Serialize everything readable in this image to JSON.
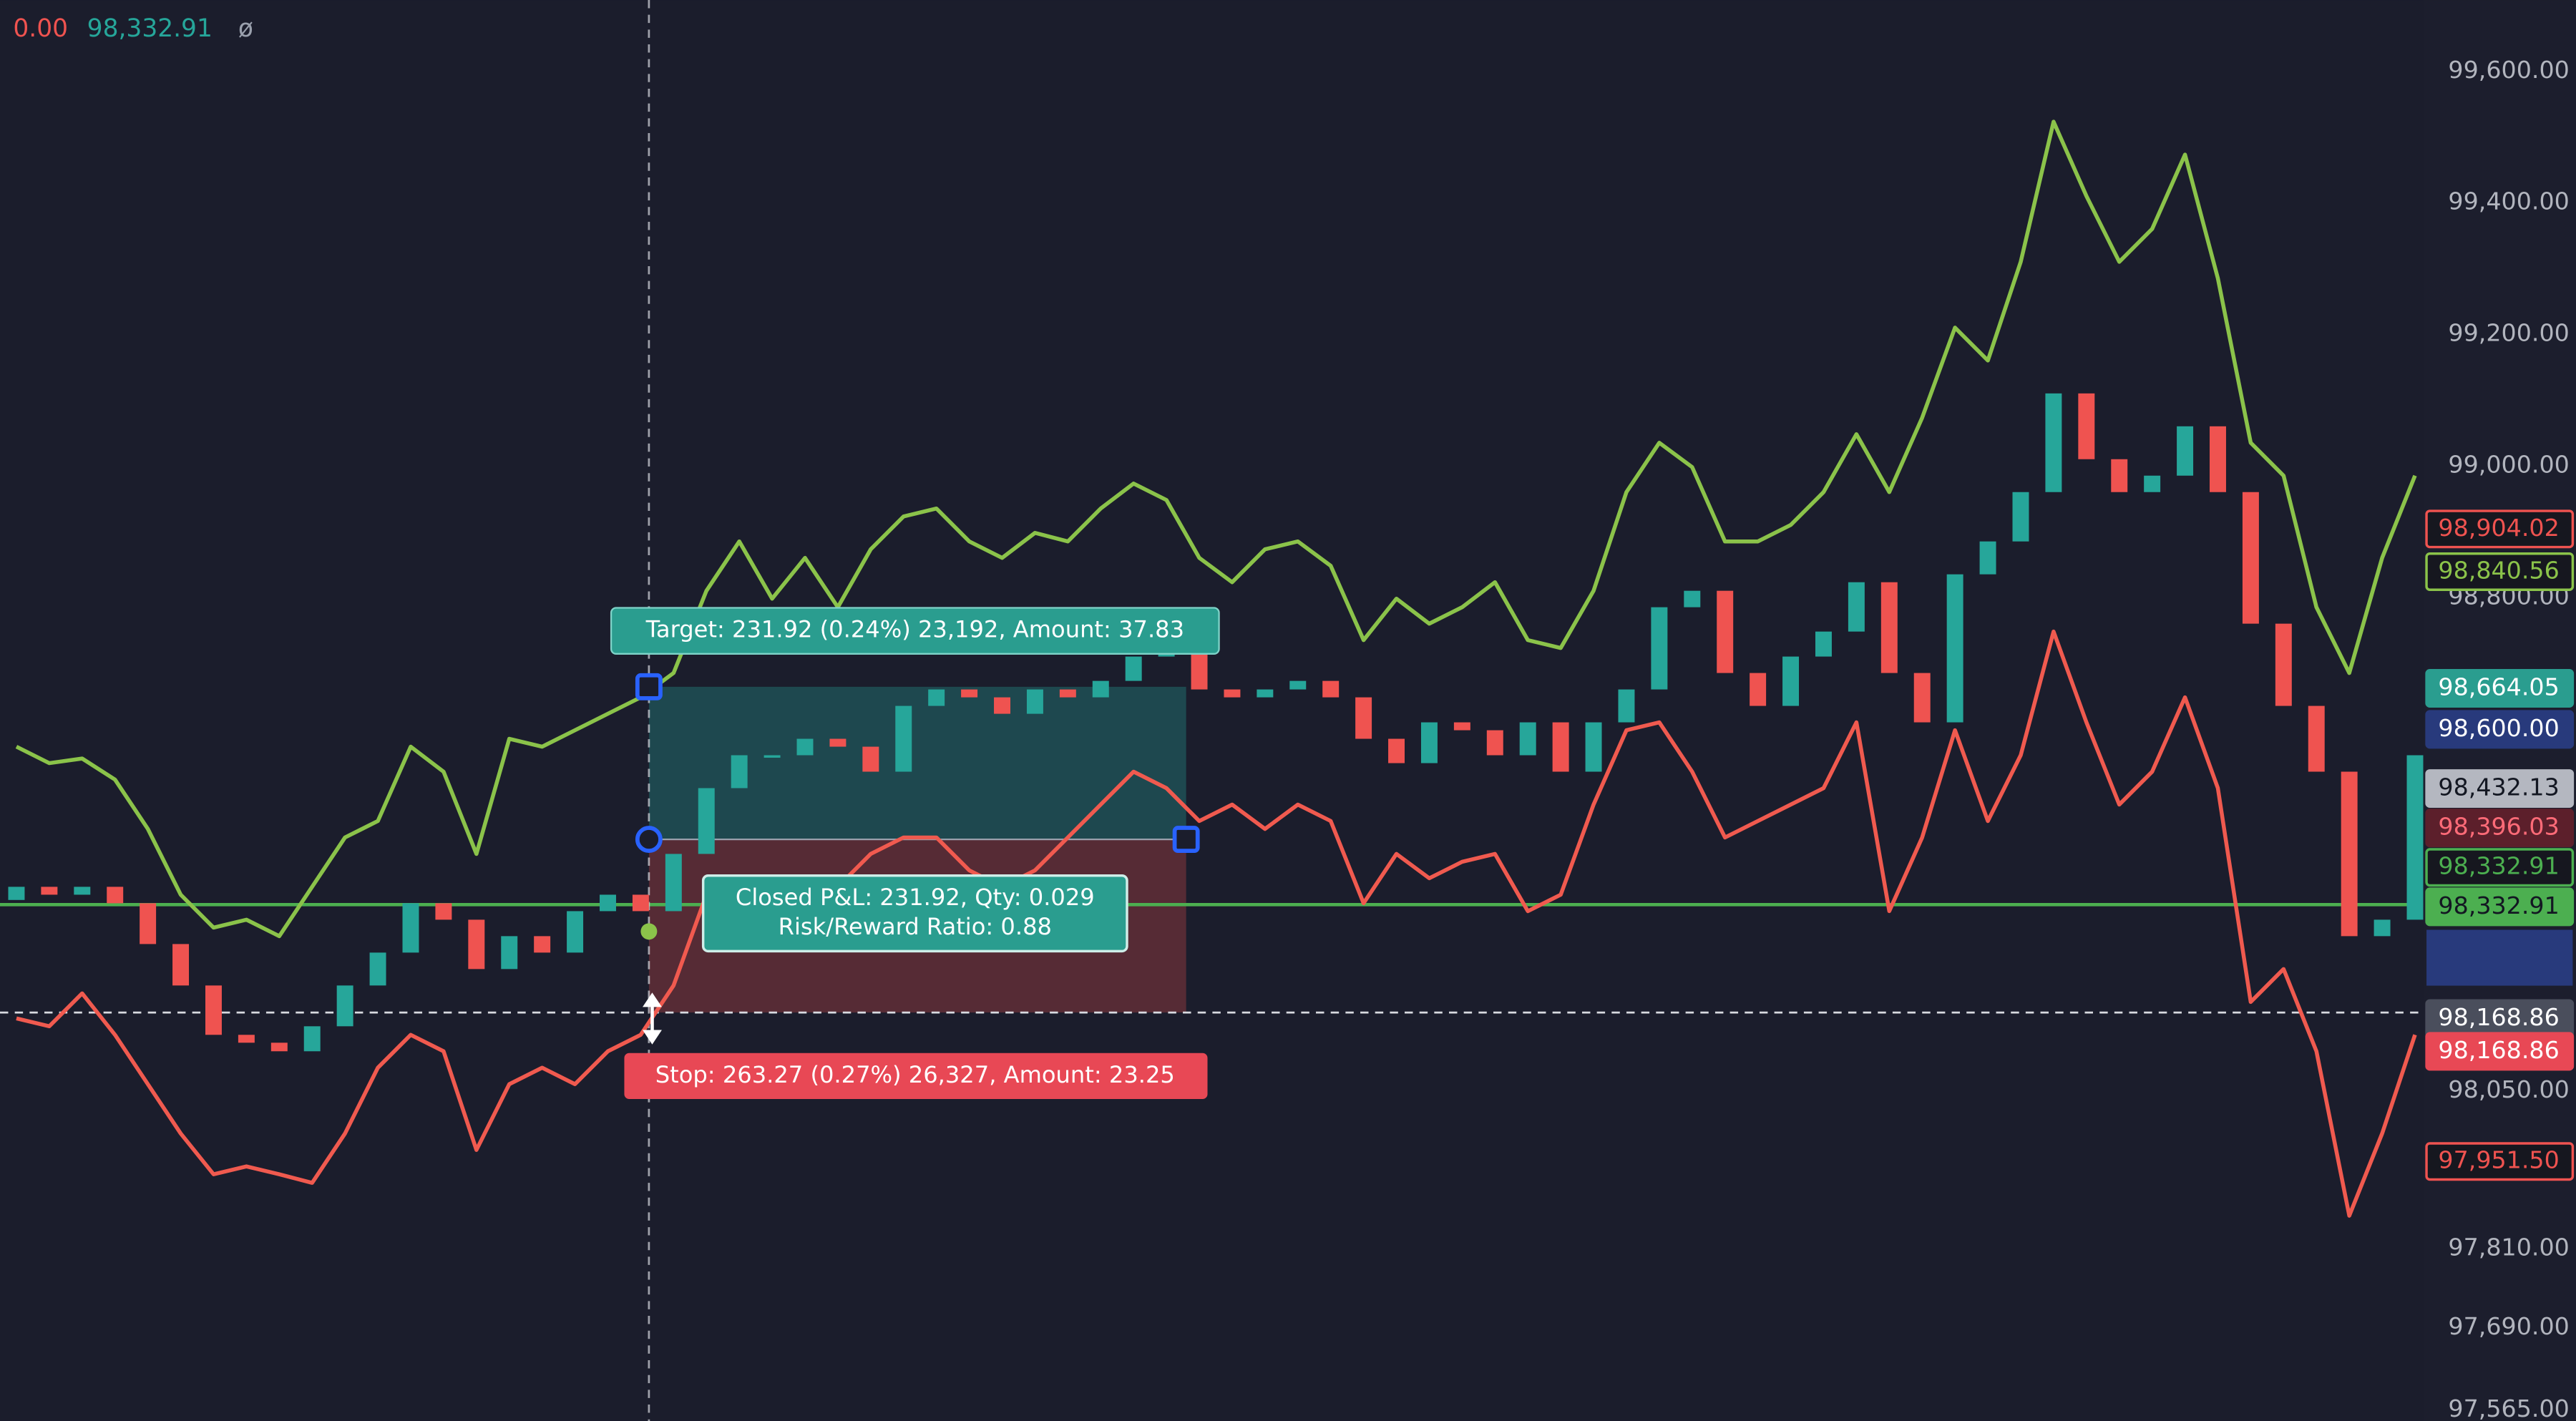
{
  "legend": {
    "change": "0.00",
    "price": "98,332.91",
    "symbol": "ø"
  },
  "chart_data": {
    "type": "candlestick",
    "up_color": "#26a69a",
    "down_color": "#ef5350",
    "open": [
      98340,
      98360,
      98348,
      98360,
      98335,
      98273,
      98210,
      98135,
      98123,
      98110,
      98148,
      98210,
      98260,
      98335,
      98310,
      98235,
      98285,
      98260,
      98323,
      98348,
      98323,
      98410,
      98510,
      98560,
      98560,
      98585,
      98573,
      98535,
      98635,
      98660,
      98648,
      98623,
      98660,
      98648,
      98673,
      98710,
      98735,
      98660,
      98648,
      98660,
      98673,
      98648,
      98585,
      98548,
      98610,
      98598,
      98560,
      98610,
      98535,
      98610,
      98660,
      98785,
      98810,
      98685,
      98635,
      98710,
      98748,
      98823,
      98685,
      98610,
      98835,
      98885,
      98960,
      99110,
      99010,
      98960,
      98985,
      99060,
      98960,
      98760,
      98635,
      98535,
      98285,
      98310
    ],
    "close": [
      98360,
      98348,
      98360,
      98335,
      98273,
      98210,
      98135,
      98123,
      98110,
      98148,
      98210,
      98260,
      98335,
      98310,
      98235,
      98285,
      98260,
      98323,
      98348,
      98323,
      98410,
      98510,
      98560,
      98560,
      98585,
      98573,
      98535,
      98635,
      98660,
      98648,
      98623,
      98660,
      98648,
      98673,
      98710,
      98735,
      98660,
      98648,
      98660,
      98673,
      98648,
      98585,
      98548,
      98610,
      98598,
      98560,
      98610,
      98535,
      98610,
      98660,
      98785,
      98810,
      98685,
      98635,
      98710,
      98748,
      98823,
      98685,
      98610,
      98835,
      98885,
      98960,
      99110,
      99010,
      98960,
      98985,
      99060,
      98960,
      98760,
      98635,
      98535,
      98285,
      98310,
      98560
    ],
    "series": [
      {
        "color": "#8bc34a",
        "values": [
          98573,
          98548,
          98555,
          98523,
          98448,
          98348,
          98298,
          98310,
          98285,
          98360,
          98435,
          98460,
          98573,
          98535,
          98410,
          98585,
          98573,
          98598,
          98623,
          98648,
          98685,
          98810,
          98885,
          98798,
          98860,
          98785,
          98873,
          98923,
          98935,
          98885,
          98860,
          98898,
          98885,
          98935,
          98973,
          98948,
          98860,
          98823,
          98873,
          98885,
          98848,
          98735,
          98798,
          98760,
          98785,
          98823,
          98735,
          98723,
          98810,
          98960,
          99035,
          98998,
          98885,
          98885,
          98910,
          98960,
          99048,
          98960,
          99073,
          99210,
          99160,
          99310,
          99523,
          99410,
          99310,
          99360,
          99473,
          99285,
          99035,
          98985,
          98785,
          98685,
          98860,
          98985
        ]
      },
      {
        "color": "#f05a4f",
        "values": [
          98160,
          98148,
          98198,
          98135,
          98060,
          97985,
          97923,
          97935,
          97923,
          97910,
          97985,
          98085,
          98135,
          98110,
          97960,
          98060,
          98085,
          98060,
          98110,
          98135,
          98210,
          98348,
          98360,
          98348,
          98335,
          98360,
          98410,
          98435,
          98435,
          98385,
          98360,
          98385,
          98435,
          98485,
          98535,
          98510,
          98460,
          98485,
          98448,
          98485,
          98460,
          98335,
          98410,
          98373,
          98398,
          98410,
          98323,
          98348,
          98485,
          98598,
          98610,
          98535,
          98435,
          98460,
          98485,
          98510,
          98610,
          98323,
          98435,
          98598,
          98460,
          98560,
          98748,
          98610,
          98485,
          98535,
          98648,
          98510,
          98185,
          98235,
          98110,
          97860,
          97985,
          98135
        ]
      }
    ],
    "ylim": [
      97548,
      99708
    ],
    "yticks": [
      {
        "value": 99600,
        "label": "99,600.00"
      },
      {
        "value": 99400,
        "label": "99,400.00"
      },
      {
        "value": 99200,
        "label": "99,200.00"
      },
      {
        "value": 99000,
        "label": "99,000.00"
      },
      {
        "value": 98800,
        "label": "98,800.00"
      },
      {
        "value": 98050,
        "label": "98,050.00"
      },
      {
        "value": 97810,
        "label": "97,810.00"
      },
      {
        "value": 97690,
        "label": "97,690.00"
      },
      {
        "value": 97565,
        "label": "97,565.00"
      }
    ],
    "current_price": 98332.91,
    "crosshair_price": 98168.86,
    "position": {
      "entry": 98432.13,
      "target": 98664.05,
      "stop": 98168.86,
      "target_label": "Target: 231.92 (0.24%) 23,192, Amount: 37.83",
      "pnl_label": "Closed P&L: 231.92, Qty: 0.029",
      "ratio_label": "Risk/Reward Ratio: 0.88",
      "stop_label": "Stop: 263.27 (0.27%) 26,327, Amount: 23.25"
    },
    "price_tags": [
      {
        "value": 98904.02,
        "label": "98,904.02",
        "color": "#ef5350",
        "filled": false
      },
      {
        "value": 98840.56,
        "label": "98,840.56",
        "color": "#8bc34a",
        "filled": false
      },
      {
        "value": 98664.05,
        "label": "98,664.05",
        "color": "#2a9d8f",
        "filled": true
      },
      {
        "value": 98600,
        "label": "98,600.00",
        "color": "#283a7c",
        "filled": true
      },
      {
        "value": 98432.13,
        "label": "98,432.13",
        "color": "#b4b7c0",
        "filled": true
      },
      {
        "value": 98396.03,
        "label": "98,396.03",
        "color": "#5c1f2b",
        "filled": true
      },
      {
        "value": 98332.91,
        "label": "98,332.91",
        "color": "#4caf50",
        "filled": false
      },
      {
        "value": 98332.91,
        "label": "98,332.91",
        "color": "#4caf50",
        "filled": true
      },
      {
        "value": 98168.86,
        "label": "98,168.86",
        "color": "#4a4e5c",
        "filled": true
      },
      {
        "value": 98168.86,
        "label": "98,168.86",
        "color": "#e84855",
        "filled": true
      },
      {
        "value": 97951.5,
        "label": "97,951.50",
        "color": "#ef5350",
        "filled": false
      }
    ]
  }
}
